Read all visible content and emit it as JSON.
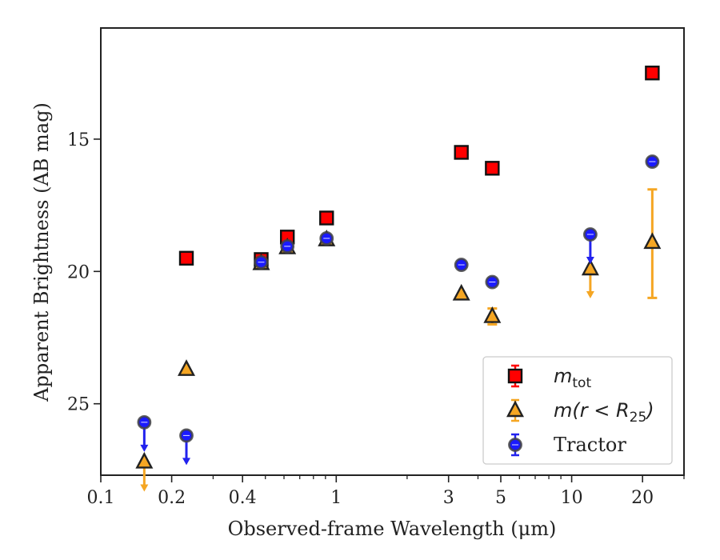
{
  "chart_data": {
    "type": "scatter",
    "title": "",
    "xlabel": "Observed-frame Wavelength (μm)",
    "ylabel": "Apparent Brightness (AB mag)",
    "x_scale": "log",
    "xlim": [
      0.1,
      30
    ],
    "ylim": [
      27.7,
      10.8
    ],
    "y_inverted": true,
    "x_ticks": [
      {
        "value": 0.1,
        "label": "0.1"
      },
      {
        "value": 0.2,
        "label": "0.2"
      },
      {
        "value": 0.4,
        "label": "0.4"
      },
      {
        "value": 1,
        "label": "1"
      },
      {
        "value": 3,
        "label": "3"
      },
      {
        "value": 5,
        "label": "5"
      },
      {
        "value": 10,
        "label": "10"
      },
      {
        "value": 20,
        "label": "20"
      }
    ],
    "y_ticks": [
      {
        "value": 15,
        "label": "15"
      },
      {
        "value": 20,
        "label": "20"
      },
      {
        "value": 25,
        "label": "25"
      }
    ],
    "legend_position": "lower-right",
    "series": [
      {
        "name": "m_tot",
        "legend_math": "m",
        "legend_sub": "tot",
        "marker": "square",
        "color": "#ff0000",
        "errcolor": "#ff0000",
        "points": [
          {
            "x": 0.231,
            "y": 19.5
          },
          {
            "x": 0.48,
            "y": 19.55
          },
          {
            "x": 0.62,
            "y": 18.7
          },
          {
            "x": 0.91,
            "y": 17.98
          },
          {
            "x": 3.4,
            "y": 15.5
          },
          {
            "x": 4.6,
            "y": 16.1
          },
          {
            "x": 22.0,
            "y": 12.5
          }
        ]
      },
      {
        "name": "m(r < R25)",
        "legend_math": "m(r < R",
        "legend_sub": "25",
        "legend_tail": ")",
        "marker": "triangle",
        "color": "#f5a623",
        "errcolor": "#f5a623",
        "points": [
          {
            "x": 0.153,
            "y": 27.2,
            "upper_limit": true
          },
          {
            "x": 0.231,
            "y": 23.7
          },
          {
            "x": 0.48,
            "y": 19.7
          },
          {
            "x": 0.62,
            "y": 19.1
          },
          {
            "x": 0.91,
            "y": 18.8
          },
          {
            "x": 3.4,
            "y": 20.85
          },
          {
            "x": 4.6,
            "y": 21.7,
            "err": 0.3
          },
          {
            "x": 12.0,
            "y": 19.9,
            "upper_limit": true
          },
          {
            "x": 22.0,
            "y": 18.9,
            "err_low": 2.0,
            "err_high": 2.1
          }
        ]
      },
      {
        "name": "Tractor",
        "legend_math": "",
        "legend_sub": "",
        "marker": "circle",
        "color": "#1a1aff",
        "errcolor": "#2222ee",
        "points": [
          {
            "x": 0.153,
            "y": 25.7,
            "upper_limit": true
          },
          {
            "x": 0.231,
            "y": 26.2,
            "upper_limit": true
          },
          {
            "x": 0.48,
            "y": 19.65
          },
          {
            "x": 0.62,
            "y": 19.05
          },
          {
            "x": 0.91,
            "y": 18.75
          },
          {
            "x": 3.4,
            "y": 19.75
          },
          {
            "x": 4.6,
            "y": 20.4
          },
          {
            "x": 12.0,
            "y": 18.6,
            "upper_limit": true
          },
          {
            "x": 22.0,
            "y": 15.85
          }
        ]
      }
    ]
  }
}
